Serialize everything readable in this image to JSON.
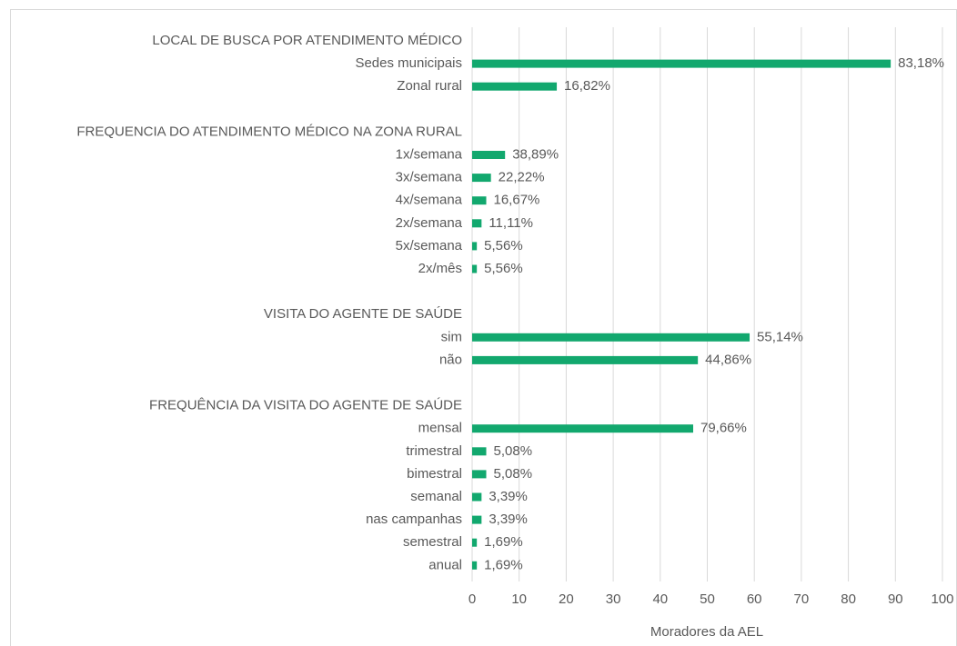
{
  "chart_data": {
    "type": "bar",
    "orientation": "horizontal",
    "color": "#12a86e",
    "x_label": "Moradores da AEL",
    "xlim": [
      0,
      100
    ],
    "xticks": [
      0,
      10,
      20,
      30,
      40,
      50,
      60,
      70,
      80,
      90,
      100
    ],
    "grid": true,
    "groups": [
      {
        "name": "LOCAL DE BUSCA POR ATENDIMENTO MÉDICO",
        "categories": [
          "Sedes municipais",
          "Zonal rural"
        ],
        "values": [
          89,
          18
        ],
        "data_labels": [
          "83,18%",
          "16,82%"
        ]
      },
      {
        "name": "FREQUENCIA DO ATENDIMENTO MÉDICO NA ZONA RURAL",
        "categories": [
          "1x/semana",
          "3x/semana",
          "4x/semana",
          "2x/semana",
          "5x/semana",
          "2x/mês"
        ],
        "values": [
          7,
          4,
          3,
          2,
          1,
          1
        ],
        "data_labels": [
          "38,89%",
          "22,22%",
          "16,67%",
          "11,11%",
          "5,56%",
          "5,56%"
        ]
      },
      {
        "name": "VISITA DO AGENTE DE SAÚDE",
        "categories": [
          "sim",
          "não"
        ],
        "values": [
          59,
          48
        ],
        "data_labels": [
          "55,14%",
          "44,86%"
        ]
      },
      {
        "name": "FREQUÊNCIA DA VISITA DO AGENTE DE SAÚDE",
        "categories": [
          "mensal",
          "trimestral",
          "bimestral",
          "semanal",
          "nas campanhas",
          "semestral",
          "anual"
        ],
        "values": [
          47,
          3,
          3,
          2,
          2,
          1,
          1
        ],
        "data_labels": [
          "79,66%",
          "5,08%",
          "5,08%",
          "3,39%",
          "3,39%",
          "1,69%",
          "1,69%"
        ]
      }
    ]
  }
}
